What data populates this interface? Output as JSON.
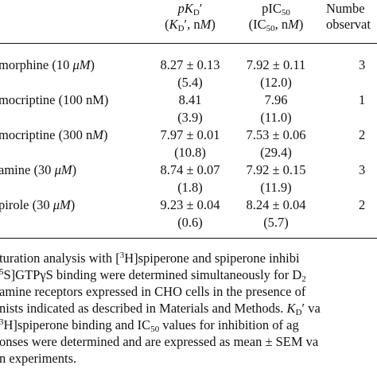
{
  "header": {
    "col_pkd_line1": "pKD′",
    "col_pkd_line2": "(KD′, nM)",
    "col_pic50_line1": "pIC50",
    "col_pic50_line2": "(IC50, nM)",
    "col_n_line1": "Numbe",
    "col_n_line2": "observat"
  },
  "rows": [
    {
      "agonist": "morphine (10 μM)",
      "pkd": "8.27 ± 0.13",
      "kd": "(5.4)",
      "pic50": "7.92 ± 0.11",
      "ic50": "(12.0)",
      "n": "3"
    },
    {
      "agonist": "mocriptine (100 nM)",
      "pkd": "8.41",
      "kd": "(3.9)",
      "pic50": "7.96",
      "ic50": "(11.0)",
      "n": "1"
    },
    {
      "agonist": "mocriptine (300 nM)",
      "pkd": "7.97 ± 0.01",
      "kd": "(10.8)",
      "pic50": "7.53 ± 0.06",
      "ic50": "(29.4)",
      "n": "2"
    },
    {
      "agonist": "amine (30 μM)",
      "pkd": "8.74 ± 0.07",
      "kd": "(1.8)",
      "pic50": "7.92 ± 0.15",
      "ic50": "(11.9)",
      "n": "3"
    },
    {
      "agonist": "pirole (30 μM)",
      "pkd": "9.23 ± 0.04",
      "kd": "(0.6)",
      "pic50": "8.24 ± 0.04",
      "ic50": "(5.7)",
      "n": "2"
    }
  ],
  "footnote": {
    "l1a": "turation analysis with [",
    "l1sup": "3",
    "l1b": "H]spiperone and spiperone inhibi",
    "l2sup": "5",
    "l2a": "S]GTPγS binding were determined simultaneously for D",
    "l2sub": "2",
    "l3": "amine receptors expressed in CHO cells in the presence of",
    "l4a": "nists indicated as described in Materials and Methods.",
    "l4b": "KD′ va",
    "l5sup": "3",
    "l5a": "H]spiperone binding and IC",
    "l5sub": "50",
    "l5b": " values for inhibition of ag",
    "l6": "onses were determined and are expressed as mean ± SEM va",
    "l7": "n experiments."
  }
}
